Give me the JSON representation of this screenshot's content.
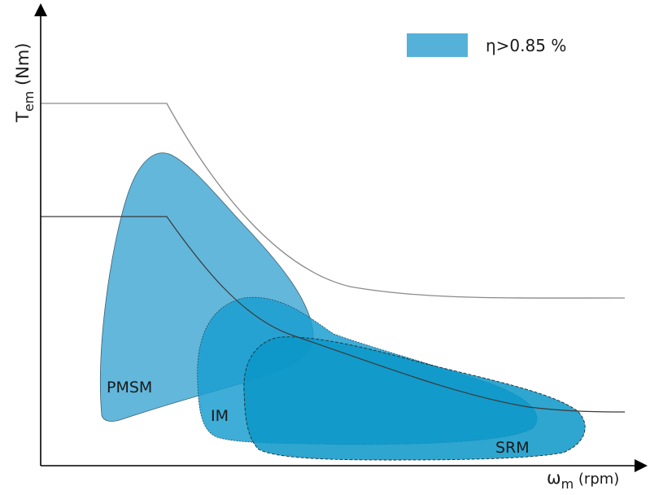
{
  "axes": {
    "y_label_main": "T",
    "y_label_sub": "em",
    "y_label_unit": " (Nm)",
    "x_label_main": "ω",
    "x_label_sub": "m",
    "x_label_unit": " (rpm)"
  },
  "legend": {
    "label": "η>0.85 %",
    "swatch_color": "#55b1d8"
  },
  "regions": {
    "pmsm": {
      "label": "PMSM",
      "fill": "#55b1d8"
    },
    "im": {
      "label": "IM",
      "fill": "#1c9fd0"
    },
    "srm": {
      "label": "SRM",
      "fill": "#0a97c8"
    }
  },
  "curves": {
    "upper": {
      "color": "#8a8a8a"
    },
    "lower": {
      "color": "#3a3a3a"
    }
  }
}
